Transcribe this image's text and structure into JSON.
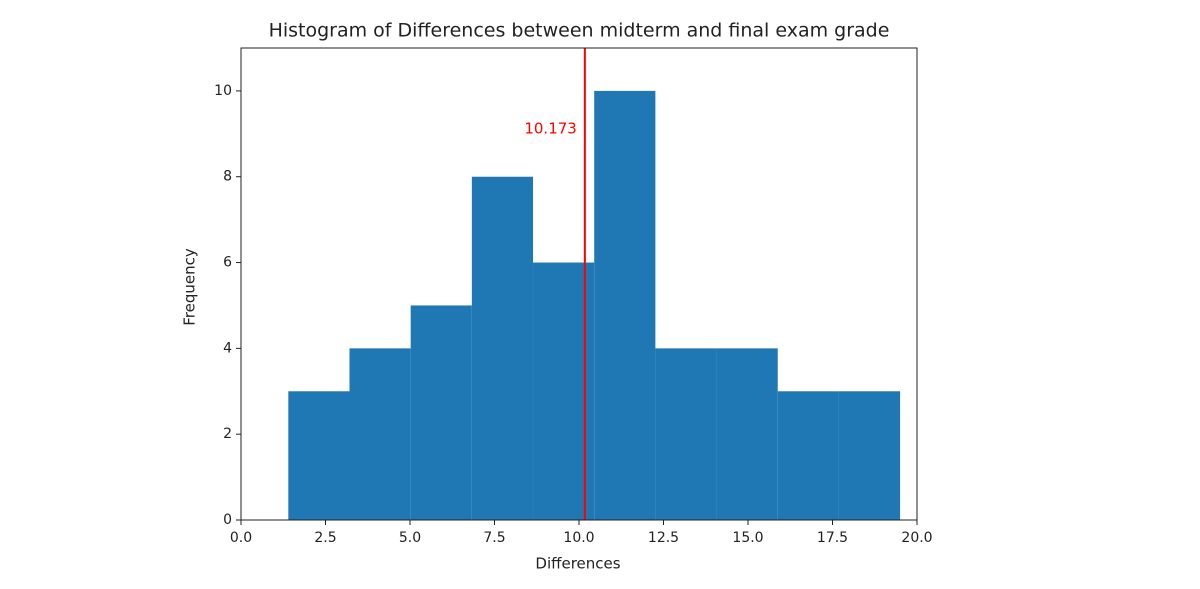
{
  "chart_data": {
    "type": "histogram",
    "title": "Histogram of Differences between midterm and final exam grade",
    "x_label": "Differences",
    "y_label": "Frequency",
    "bins": [
      1.4,
      3.21,
      5.02,
      6.83,
      8.64,
      10.45,
      12.26,
      14.07,
      15.88,
      17.69,
      19.5
    ],
    "values": [
      3,
      4,
      5,
      8,
      6,
      10,
      4,
      4,
      3,
      3
    ],
    "color": "#1f77b4",
    "vline": 10.173,
    "vline_color": "#ff0000",
    "xlim": [
      0,
      20
    ],
    "xticks": [
      {
        "value": 0,
        "label": "0.0"
      },
      2.5,
      {
        "value": 5,
        "label": "5.0"
      },
      7.5,
      {
        "value": 10,
        "label": "10.0"
      },
      12.5,
      {
        "value": 15,
        "label": "15.0"
      },
      17.5,
      {
        "value": 20,
        "label": "20.0"
      }
    ],
    "ylim": [
      0,
      11
    ],
    "yticks": [
      0,
      2,
      4,
      6,
      8,
      10
    ],
    "grid": false
  }
}
